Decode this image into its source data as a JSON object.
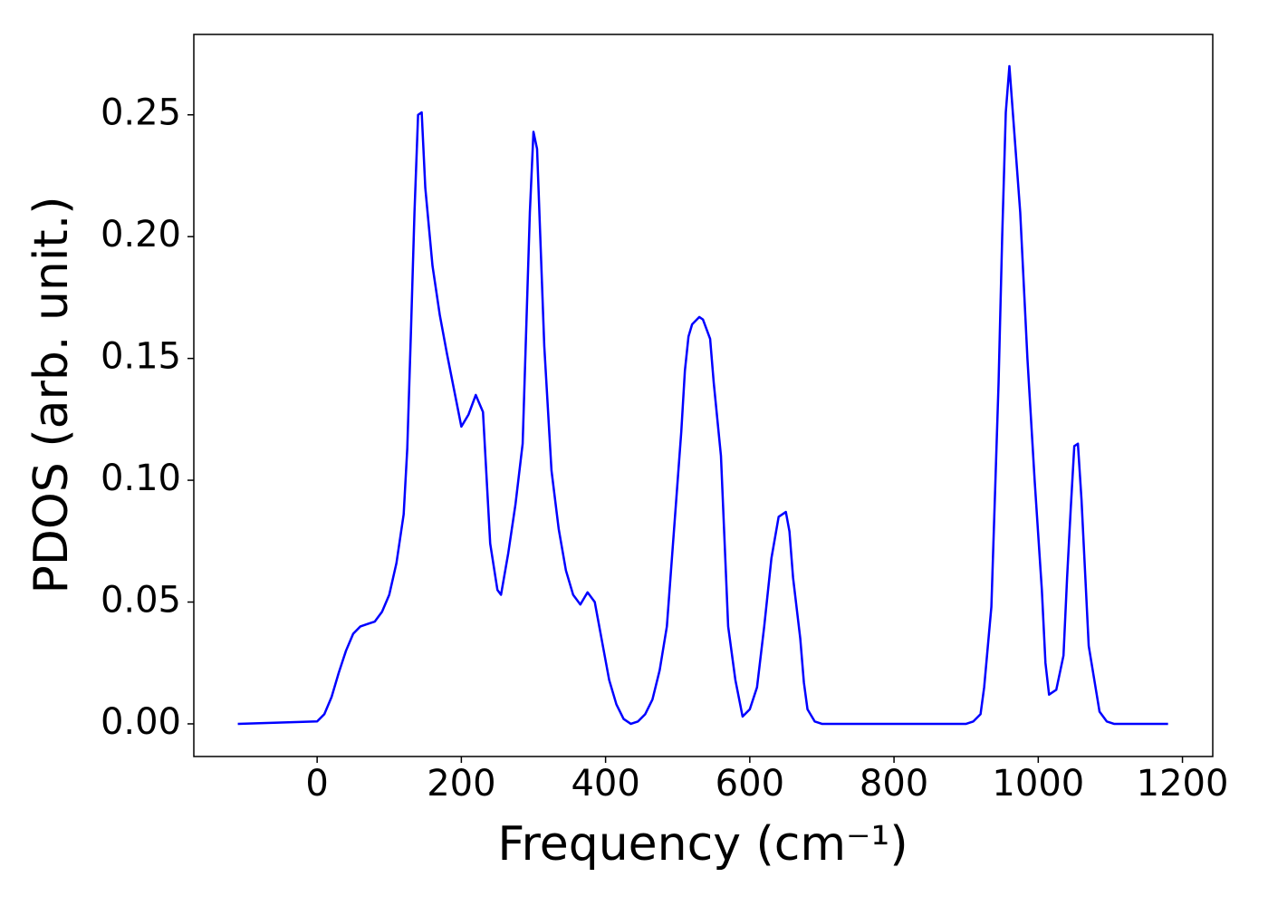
{
  "chart_data": {
    "type": "line",
    "x_label": "Frequency (cm⁻¹)",
    "y_label": "PDOS (arb. unit.)",
    "x": [
      -110,
      0,
      10,
      20,
      30,
      40,
      50,
      60,
      70,
      80,
      90,
      100,
      110,
      120,
      125,
      130,
      135,
      140,
      145,
      150,
      160,
      170,
      180,
      190,
      200,
      210,
      220,
      230,
      240,
      250,
      255,
      265,
      275,
      285,
      295,
      300,
      305,
      315,
      325,
      335,
      345,
      355,
      365,
      375,
      385,
      395,
      405,
      415,
      425,
      435,
      445,
      455,
      465,
      475,
      485,
      495,
      505,
      510,
      515,
      520,
      530,
      535,
      545,
      550,
      560,
      570,
      580,
      590,
      600,
      610,
      620,
      630,
      640,
      650,
      655,
      660,
      670,
      675,
      680,
      690,
      700,
      900,
      910,
      920,
      925,
      935,
      945,
      950,
      955,
      960,
      965,
      975,
      985,
      995,
      1005,
      1010,
      1015,
      1025,
      1035,
      1040,
      1045,
      1050,
      1055,
      1060,
      1070,
      1080,
      1085,
      1095,
      1105,
      1180
    ],
    "series": [
      {
        "color": "#0000ff",
        "values": [
          0,
          0.001,
          0.004,
          0.011,
          0.021,
          0.03,
          0.037,
          0.04,
          0.041,
          0.042,
          0.046,
          0.053,
          0.066,
          0.086,
          0.113,
          0.16,
          0.21,
          0.25,
          0.251,
          0.22,
          0.188,
          0.168,
          0.152,
          0.137,
          0.122,
          0.127,
          0.135,
          0.128,
          0.074,
          0.055,
          0.053,
          0.07,
          0.09,
          0.115,
          0.21,
          0.243,
          0.236,
          0.155,
          0.104,
          0.08,
          0.063,
          0.053,
          0.049,
          0.054,
          0.05,
          0.034,
          0.018,
          0.008,
          0.002,
          0,
          0.001,
          0.004,
          0.01,
          0.022,
          0.04,
          0.08,
          0.12,
          0.145,
          0.159,
          0.164,
          0.167,
          0.166,
          0.158,
          0.14,
          0.11,
          0.04,
          0.018,
          0.003,
          0.006,
          0.015,
          0.04,
          0.068,
          0.085,
          0.087,
          0.079,
          0.06,
          0.035,
          0.017,
          0.006,
          0.001,
          0,
          0,
          0.001,
          0.004,
          0.015,
          0.048,
          0.14,
          0.2,
          0.251,
          0.27,
          0.25,
          0.21,
          0.15,
          0.1,
          0.055,
          0.025,
          0.012,
          0.014,
          0.028,
          0.06,
          0.088,
          0.114,
          0.115,
          0.092,
          0.032,
          0.014,
          0.005,
          0.001,
          0,
          0
        ]
      }
    ],
    "xlim": [
      -171,
      1242
    ],
    "ylim": [
      -0.0134,
      0.283
    ],
    "xticks": [
      0,
      200,
      400,
      600,
      800,
      1000,
      1200
    ],
    "yticks": [
      {
        "value": 0,
        "label": "0.00"
      },
      {
        "value": 0.05,
        "label": "0.05"
      },
      {
        "value": 0.1,
        "label": "0.10"
      },
      {
        "value": 0.15,
        "label": "0.15"
      },
      {
        "value": 0.2,
        "label": "0.20"
      },
      {
        "value": 0.25,
        "label": "0.25"
      }
    ],
    "grid": false
  }
}
